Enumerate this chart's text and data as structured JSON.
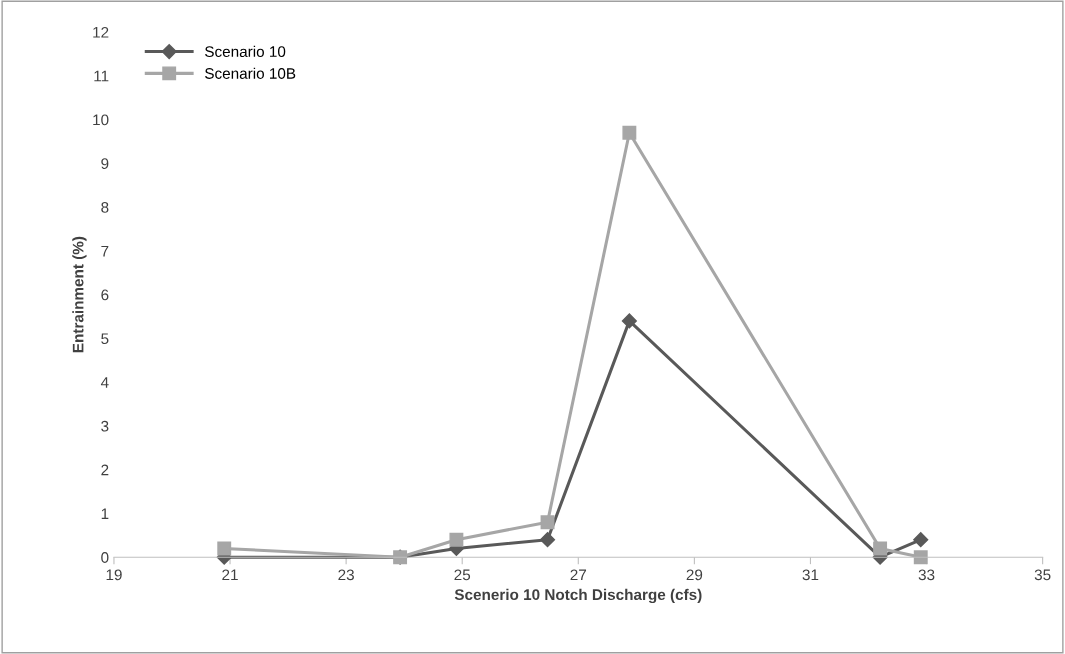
{
  "chart_data": {
    "type": "line",
    "xlabel": "Scenerio 10 Notch Discharge (cfs)",
    "ylabel": "Entrainment (%)",
    "x": [
      20.9,
      23.93,
      24.9,
      26.47,
      27.88,
      32.2,
      32.9
    ],
    "series": [
      {
        "name": "Scenario 10",
        "color": "#595959",
        "marker": "diamond",
        "values": [
          0,
          0,
          0.2,
          0.4,
          5.4,
          0,
          0.4
        ]
      },
      {
        "name": "Scenario 10B",
        "color": "#a6a6a6",
        "marker": "square",
        "values": [
          0.2,
          0,
          0.4,
          0.8,
          9.7,
          0.2,
          0
        ]
      }
    ],
    "xlim": [
      19,
      35
    ],
    "xticks": [
      19,
      21,
      23,
      25,
      27,
      29,
      31,
      33,
      35
    ],
    "ylim": [
      0,
      12
    ],
    "yticks": [
      0,
      1,
      2,
      3,
      4,
      5,
      6,
      7,
      8,
      9,
      10,
      11,
      12
    ],
    "grid": false,
    "legend": "top left",
    "line_style": "solid"
  }
}
